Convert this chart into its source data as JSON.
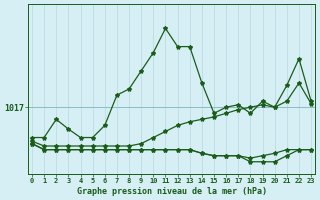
{
  "title": "Graphe pression niveau de la mer (hPa)",
  "background_color": "#d6eff5",
  "vgrid_color": "#b8d8e0",
  "hline_color": "#8bbcc8",
  "line_color": "#1a5c1a",
  "x_labels": [
    "0",
    "1",
    "2",
    "3",
    "4",
    "5",
    "6",
    "7",
    "8",
    "9",
    "10",
    "11",
    "12",
    "13",
    "14",
    "15",
    "16",
    "17",
    "18",
    "19",
    "20",
    "21",
    "22",
    "23"
  ],
  "hours": [
    0,
    1,
    2,
    3,
    4,
    5,
    6,
    7,
    8,
    9,
    10,
    11,
    12,
    13,
    14,
    15,
    16,
    17,
    18,
    19,
    20,
    21,
    22,
    23
  ],
  "series1": [
    1014.5,
    1014.5,
    1016.0,
    1015.2,
    1014.5,
    1014.5,
    1015.5,
    1018.0,
    1018.5,
    1020.0,
    1021.5,
    1023.5,
    1022.0,
    1022.0,
    1019.0,
    1016.5,
    1017.0,
    1017.2,
    1016.5,
    1017.5,
    1017.0,
    1018.8,
    1021.0,
    1017.5
  ],
  "series2": [
    1014.2,
    1013.8,
    1013.8,
    1013.8,
    1013.8,
    1013.8,
    1013.8,
    1013.8,
    1013.8,
    1014.0,
    1014.5,
    1015.0,
    1015.5,
    1015.8,
    1016.0,
    1016.2,
    1016.5,
    1016.8,
    1017.0,
    1017.2,
    1017.0,
    1017.5,
    1019.0,
    1017.3
  ],
  "series3": [
    1014.0,
    1013.5,
    1013.5,
    1013.5,
    1013.5,
    1013.5,
    1013.5,
    1013.5,
    1013.5,
    1013.5,
    1013.5,
    1013.5,
    1013.5,
    1013.5,
    1013.2,
    1013.0,
    1013.0,
    1013.0,
    1012.8,
    1013.0,
    1013.2,
    1013.5,
    1013.5,
    1013.5
  ],
  "series4": [
    1014.0,
    1013.5,
    1013.5,
    1013.5,
    1013.5,
    1013.5,
    1013.5,
    1013.5,
    1013.5,
    1013.5,
    1013.5,
    1013.5,
    1013.5,
    1013.5,
    1013.2,
    1013.0,
    1013.0,
    1013.0,
    1012.5,
    1012.5,
    1012.5,
    1013.0,
    1013.5,
    1013.5
  ],
  "hline_value": 1017,
  "ylim_min": 1011.5,
  "ylim_max": 1025.5
}
